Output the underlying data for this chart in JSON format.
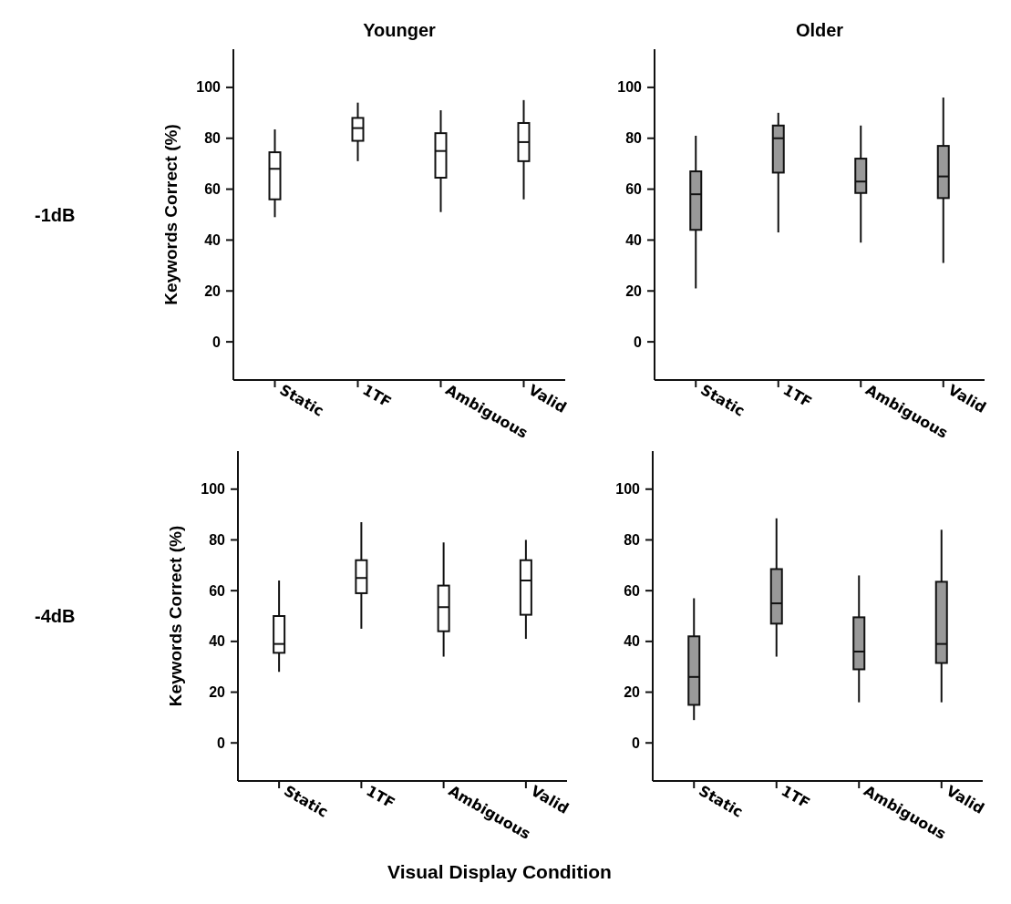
{
  "chart_data": [
    {
      "type": "box",
      "title": "Younger",
      "ylabel": "Keywords Correct (%)",
      "annotations": [
        "-1dB"
      ],
      "categories": [
        "Static",
        "1TF",
        "Ambiguous",
        "Valid"
      ],
      "ylim": [
        -15,
        115
      ],
      "yticks": [
        0,
        20,
        40,
        60,
        80,
        100
      ],
      "series": [
        {
          "color": "#ffffff",
          "boxes": [
            {
              "low": 49,
              "q1": 56,
              "median": 68,
              "q3": 74.5,
              "high": 83.5
            },
            {
              "low": 71,
              "q1": 79,
              "median": 84,
              "q3": 88,
              "high": 94
            },
            {
              "low": 51,
              "q1": 64.5,
              "median": 75,
              "q3": 82,
              "high": 91
            },
            {
              "low": 56,
              "q1": 71,
              "median": 78.5,
              "q3": 86,
              "high": 95
            }
          ]
        }
      ]
    },
    {
      "type": "box",
      "title": "Older",
      "categories": [
        "Static",
        "1TF",
        "Ambiguous",
        "Valid"
      ],
      "ylim": [
        -15,
        115
      ],
      "yticks": [
        0,
        20,
        40,
        60,
        80,
        100
      ],
      "series": [
        {
          "color": "#999999",
          "boxes": [
            {
              "low": 21,
              "q1": 44,
              "median": 58,
              "q3": 67,
              "high": 81
            },
            {
              "low": 43,
              "q1": 66.5,
              "median": 80,
              "q3": 85,
              "high": 90
            },
            {
              "low": 39,
              "q1": 58.5,
              "median": 63,
              "q3": 72,
              "high": 85
            },
            {
              "low": 31,
              "q1": 56.5,
              "median": 65,
              "q3": 77,
              "high": 96
            }
          ]
        }
      ]
    },
    {
      "type": "box",
      "ylabel": "Keywords Correct (%)",
      "xlabel": "Visual Display Condition",
      "annotations": [
        "-4dB"
      ],
      "categories": [
        "Static",
        "1TF",
        "Ambiguous",
        "Valid"
      ],
      "ylim": [
        -15,
        115
      ],
      "yticks": [
        0,
        20,
        40,
        60,
        80,
        100
      ],
      "series": [
        {
          "color": "#ffffff",
          "boxes": [
            {
              "low": 28,
              "q1": 35.5,
              "median": 39,
              "q3": 50,
              "high": 64
            },
            {
              "low": 45,
              "q1": 59,
              "median": 65,
              "q3": 72,
              "high": 87
            },
            {
              "low": 34,
              "q1": 44,
              "median": 53.5,
              "q3": 62,
              "high": 79
            },
            {
              "low": 41,
              "q1": 50.5,
              "median": 64,
              "q3": 72,
              "high": 80
            }
          ]
        }
      ]
    },
    {
      "type": "box",
      "categories": [
        "Static",
        "1TF",
        "Ambiguous",
        "Valid"
      ],
      "ylim": [
        -15,
        115
      ],
      "yticks": [
        0,
        20,
        40,
        60,
        80,
        100
      ],
      "series": [
        {
          "color": "#999999",
          "boxes": [
            {
              "low": 9,
              "q1": 15,
              "median": 26,
              "q3": 42,
              "high": 57
            },
            {
              "low": 34,
              "q1": 47,
              "median": 55,
              "q3": 68.5,
              "high": 88.5
            },
            {
              "low": 16,
              "q1": 29,
              "median": 36,
              "q3": 49.5,
              "high": 66
            },
            {
              "low": 16,
              "q1": 31.5,
              "median": 39,
              "q3": 63.5,
              "high": 84
            }
          ]
        }
      ]
    }
  ]
}
